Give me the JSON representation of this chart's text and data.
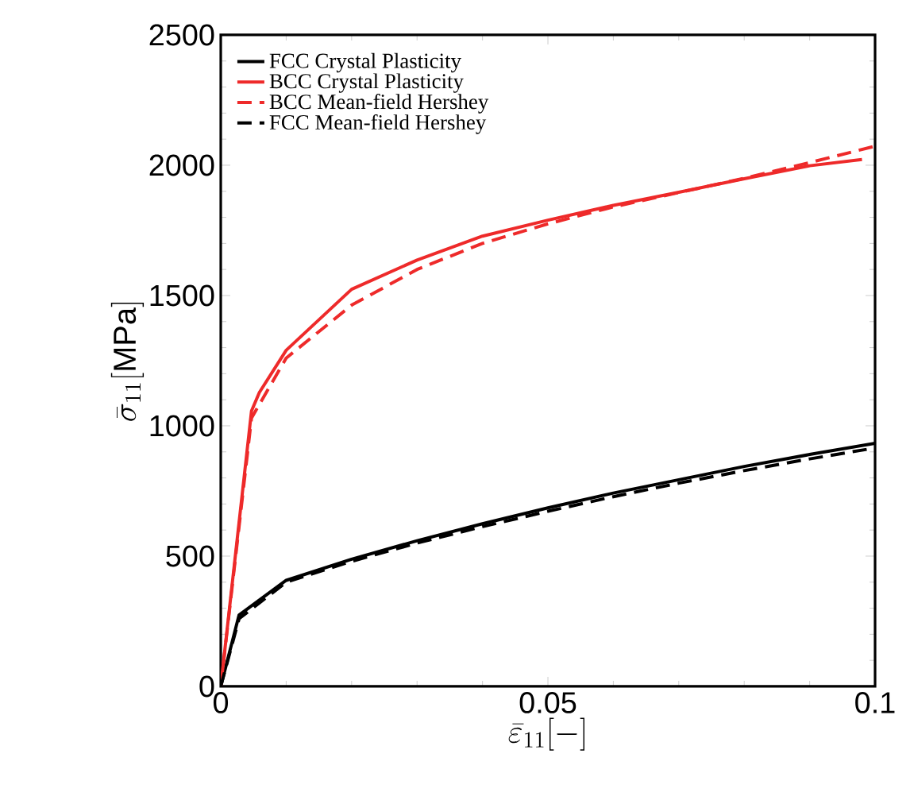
{
  "chart_data": {
    "type": "line",
    "xlabel": "\\bar{\\varepsilon}_{11}[-]",
    "ylabel": "\\bar{\\sigma}_{11}[\\mathrm{MPa}]",
    "xlim": [
      0,
      0.1
    ],
    "ylim": [
      0,
      2500
    ],
    "xticks": [
      0,
      0.05,
      0.1
    ],
    "yticks": [
      0,
      500,
      1000,
      1500,
      2000,
      2500
    ],
    "legend": "top left",
    "series": [
      {
        "name": "FCC Crystal Plasticity",
        "color": "#000000",
        "line_style": "solid",
        "x": [
          0,
          0.0028,
          0.01,
          0.02,
          0.03,
          0.04,
          0.05,
          0.06,
          0.07,
          0.08,
          0.09,
          0.1
        ],
        "values": [
          0,
          274,
          407,
          488,
          559,
          624,
          685,
          742,
          793,
          844,
          890,
          933
        ]
      },
      {
        "name": "BCC Crystal Plasticity",
        "color": "#ee2a2a",
        "line_style": "solid",
        "x": [
          0,
          0.0047,
          0.0059,
          0.01,
          0.02,
          0.03,
          0.04,
          0.05,
          0.06,
          0.07,
          0.08,
          0.09,
          0.098
        ],
        "values": [
          0,
          1057,
          1128,
          1290,
          1524,
          1636,
          1728,
          1789,
          1846,
          1896,
          1948,
          1998,
          2022
        ]
      },
      {
        "name": "BCC Mean-field Hershey",
        "color": "#ee2a2a",
        "line_style": "dashed",
        "x": [
          0,
          0.0047,
          0.01,
          0.02,
          0.03,
          0.04,
          0.05,
          0.06,
          0.07,
          0.08,
          0.09,
          0.1
        ],
        "values": [
          0,
          1030,
          1260,
          1463,
          1600,
          1700,
          1775,
          1840,
          1895,
          1950,
          2010,
          2073
        ]
      },
      {
        "name": "FCC Mean-field Hershey",
        "color": "#000000",
        "line_style": "dashed",
        "x": [
          0,
          0.0028,
          0.01,
          0.02,
          0.03,
          0.04,
          0.05,
          0.06,
          0.07,
          0.08,
          0.09,
          0.1
        ],
        "values": [
          0,
          260,
          400,
          480,
          550,
          613,
          672,
          728,
          780,
          828,
          873,
          915
        ]
      }
    ]
  }
}
